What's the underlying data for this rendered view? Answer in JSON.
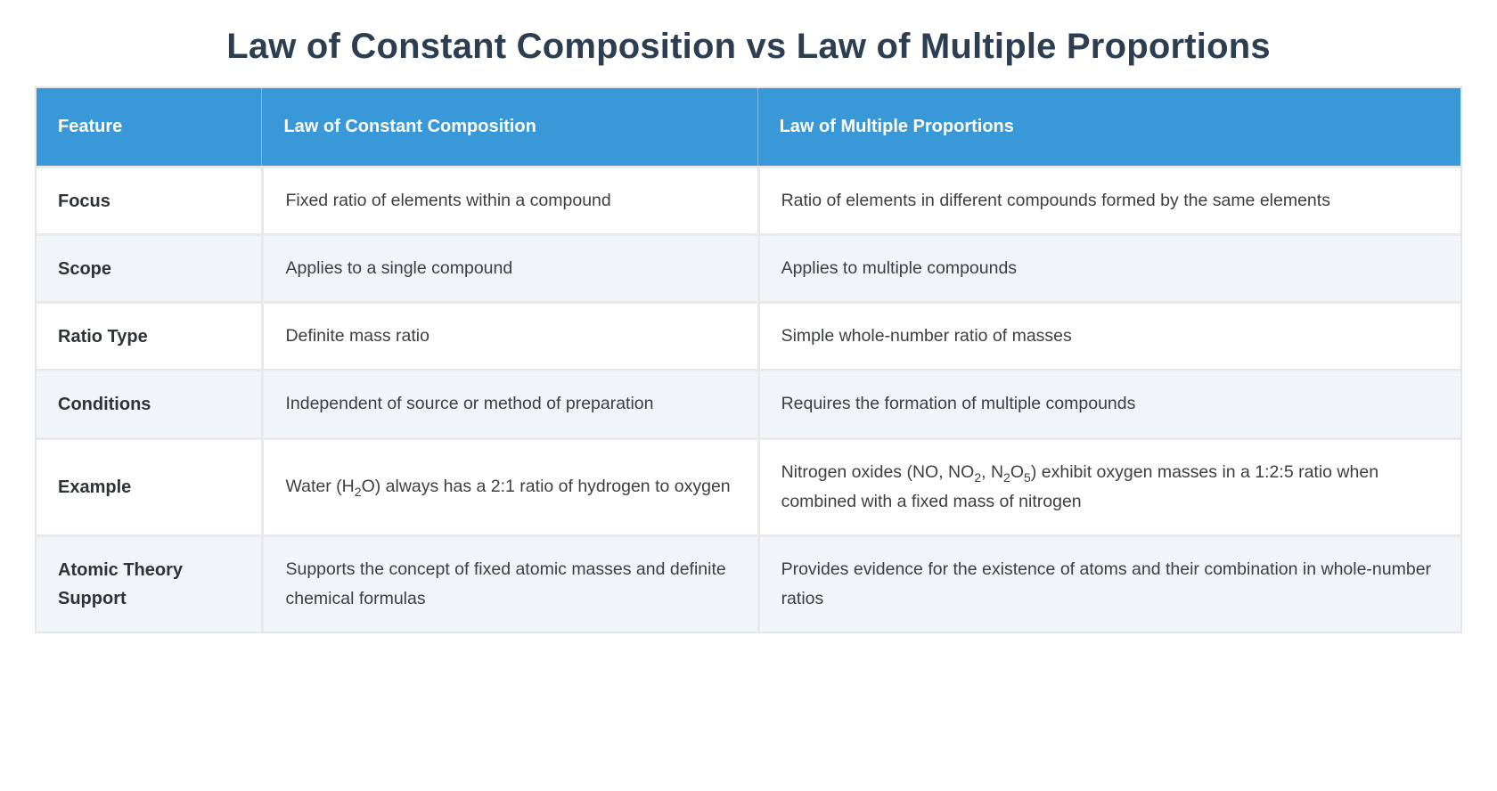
{
  "title": "Law of Constant Composition vs Law of Multiple Proportions",
  "colors": {
    "header_bg": "#3998d8",
    "header_text": "#ffffff",
    "title_text": "#2c3e50",
    "alt_row_bg": "#f1f4f8",
    "grid_border": "#e9e9ea",
    "body_text": "#3c3f42"
  },
  "table": {
    "columns": [
      "Feature",
      "Law of Constant Composition",
      "Law of Multiple Proportions"
    ],
    "rows": [
      {
        "feature": "Focus",
        "constant": "Fixed ratio of elements within a compound",
        "multiple": "Ratio of elements in different compounds formed by the same elements"
      },
      {
        "feature": "Scope",
        "constant": "Applies to a single compound",
        "multiple": "Applies to multiple compounds"
      },
      {
        "feature": "Ratio Type",
        "constant": "Definite mass ratio",
        "multiple": "Simple whole-number ratio of masses"
      },
      {
        "feature": "Conditions",
        "constant": "Independent of source or method of preparation",
        "multiple": "Requires the formation of multiple compounds"
      },
      {
        "feature": "Example",
        "constant": "Water (H_{2}O) always has a 2:1 ratio of hydrogen to oxygen",
        "multiple": "Nitrogen oxides (NO, NO_{2}, N_{2}O_{5}) exhibit oxygen masses in a 1:2:5 ratio when combined with a fixed mass of nitrogen"
      },
      {
        "feature": "Atomic Theory Support",
        "constant": "Supports the concept of fixed atomic masses and definite chemical formulas",
        "multiple": "Provides evidence for the existence of atoms and their combination in whole-number ratios"
      }
    ]
  }
}
